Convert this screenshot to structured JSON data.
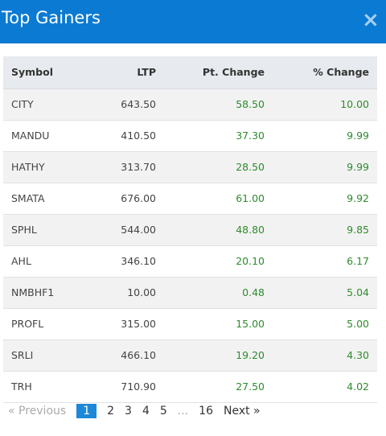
{
  "header": {
    "title": "Top Gainers",
    "close_icon": "close-icon"
  },
  "table": {
    "columns": [
      "Symbol",
      "LTP",
      "Pt. Change",
      "% Change"
    ],
    "rows": [
      {
        "symbol": "CITY",
        "ltp": "643.50",
        "pt": "58.50",
        "pct": "10.00"
      },
      {
        "symbol": "MANDU",
        "ltp": "410.50",
        "pt": "37.30",
        "pct": "9.99"
      },
      {
        "symbol": "HATHY",
        "ltp": "313.70",
        "pt": "28.50",
        "pct": "9.99"
      },
      {
        "symbol": "SMATA",
        "ltp": "676.00",
        "pt": "61.00",
        "pct": "9.92"
      },
      {
        "symbol": "SPHL",
        "ltp": "544.00",
        "pt": "48.80",
        "pct": "9.85"
      },
      {
        "symbol": "AHL",
        "ltp": "346.10",
        "pt": "20.10",
        "pct": "6.17"
      },
      {
        "symbol": "NMBHF1",
        "ltp": "10.00",
        "pt": "0.48",
        "pct": "5.04"
      },
      {
        "symbol": "PROFL",
        "ltp": "315.00",
        "pt": "15.00",
        "pct": "5.00"
      },
      {
        "symbol": "SRLI",
        "ltp": "466.10",
        "pt": "19.20",
        "pct": "4.30"
      },
      {
        "symbol": "TRH",
        "ltp": "710.90",
        "pt": "27.50",
        "pct": "4.02"
      }
    ]
  },
  "pagination": {
    "previous": "« Previous",
    "pages": [
      "1",
      "2",
      "3",
      "4",
      "5",
      "...",
      "16"
    ],
    "active": "1",
    "next": "Next »"
  },
  "colors": {
    "header_bg": "#0b7ad3",
    "positive": "#2e8b2e",
    "active_page": "#1e88d8"
  }
}
